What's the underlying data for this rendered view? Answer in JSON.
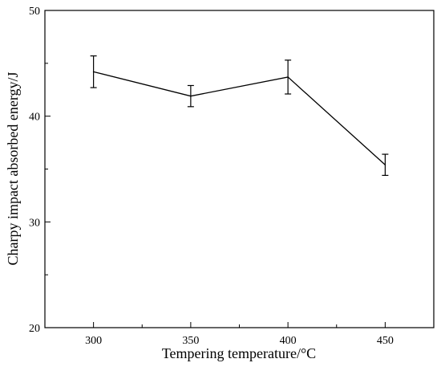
{
  "chart_data": {
    "type": "line",
    "title": "",
    "xlabel": "Tempering temperature/°C",
    "ylabel": "Charpy impact absorbed energy/J",
    "xlim": [
      275,
      475
    ],
    "ylim": [
      20,
      50
    ],
    "x_ticks": [
      300,
      350,
      400,
      450
    ],
    "y_ticks": [
      20,
      30,
      40,
      50
    ],
    "x_minor_ticks": [
      325,
      375,
      425
    ],
    "y_minor_ticks": [
      25,
      35,
      45
    ],
    "grid": false,
    "legend": false,
    "series": [
      {
        "color": "#000000",
        "x": [
          300,
          350,
          400,
          450
        ],
        "y": [
          44.2,
          41.9,
          43.7,
          35.4
        ],
        "error": [
          1.5,
          1.0,
          1.6,
          1.0
        ]
      }
    ]
  }
}
